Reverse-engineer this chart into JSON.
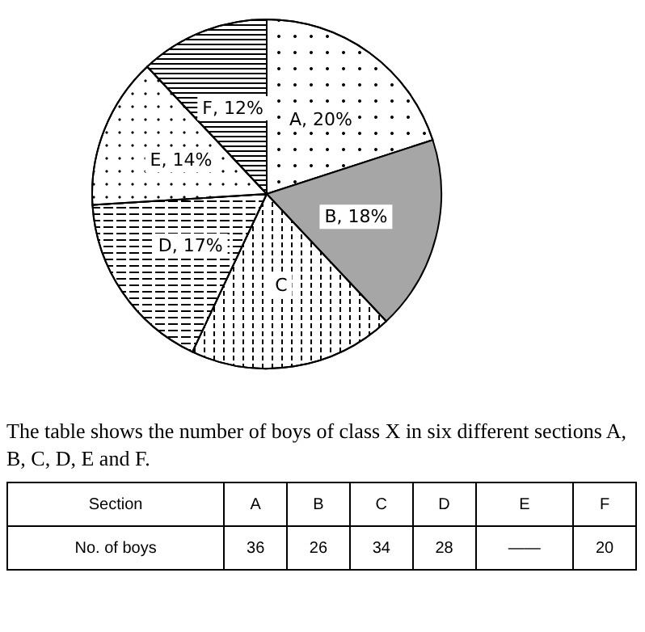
{
  "chart_data": {
    "type": "pie",
    "categories": [
      "A, 20%",
      "B, 18%",
      "C",
      "D, 17%",
      "E, 14%",
      "F, 12%"
    ],
    "values": [
      20,
      18,
      19,
      17,
      14,
      12
    ],
    "colors": [
      "#ffffff",
      "#a6a6a6",
      "#ffffff",
      "#ffffff",
      "#ffffff",
      "#ffffff"
    ],
    "annotations": [
      "The table shows the number of boys of class X in six different sections A, B, C, D, E and F.",
      "Section",
      "A",
      "B",
      "C",
      "D",
      "E",
      "F",
      "No. of boys",
      "36",
      "26",
      "34",
      "28",
      "——",
      "20"
    ]
  }
}
